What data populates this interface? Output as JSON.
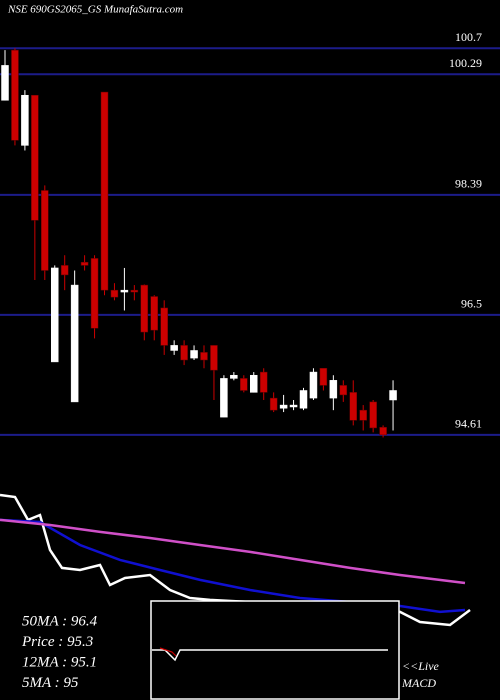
{
  "chart_data": [
    {
      "type": "candlestick",
      "title": "NSE 690GS2065_GS MunafaSutra.com",
      "up_color": "#ffffff",
      "down_color": "#cc0000",
      "grid_color": "#1c1c8a",
      "ylim": [
        94.53,
        101.46
      ],
      "yticks": [
        100.7,
        100.29,
        98.39,
        96.5,
        94.61
      ],
      "open": [
        99.88,
        100.67,
        99.17,
        99.96,
        98.46,
        95.76,
        97.28,
        95.13,
        97.33,
        97.39,
        100.01,
        96.89,
        96.86,
        96.89,
        96.97,
        96.79,
        96.61,
        95.94,
        96.02,
        95.82,
        95.91,
        96.02,
        94.89,
        95.5,
        95.5,
        95.28,
        95.6,
        95.19,
        95.03,
        95.05,
        95.03,
        95.19,
        95.66,
        95.19,
        95.39,
        95.28,
        95.0,
        95.13,
        94.73,
        95.16
      ],
      "high": [
        100.67,
        100.7,
        100.04,
        99.96,
        98.54,
        97.28,
        97.44,
        97.2,
        97.44,
        97.44,
        100.01,
        97.0,
        97.24,
        96.97,
        96.98,
        96.81,
        96.73,
        96.1,
        96.1,
        96.02,
        96.02,
        96.02,
        95.55,
        95.6,
        95.55,
        95.6,
        95.66,
        95.28,
        95.24,
        95.16,
        95.35,
        95.66,
        95.66,
        95.55,
        95.47,
        95.47,
        95.08,
        95.16,
        94.76,
        95.47
      ],
      "low": [
        99.88,
        99.17,
        99.09,
        97.05,
        97.05,
        95.76,
        96.89,
        95.13,
        97.2,
        96.13,
        96.81,
        96.73,
        96.57,
        96.73,
        96.1,
        96.1,
        95.87,
        95.87,
        95.71,
        95.79,
        95.66,
        95.16,
        94.89,
        95.47,
        95.28,
        95.28,
        95.16,
        94.97,
        94.97,
        95.0,
        95.0,
        95.16,
        95.31,
        95.0,
        95.13,
        94.76,
        94.68,
        94.65,
        94.57,
        94.68
      ],
      "close": [
        100.43,
        99.25,
        99.96,
        97.99,
        97.2,
        97.24,
        97.13,
        96.97,
        97.28,
        96.29,
        96.89,
        96.78,
        96.89,
        96.86,
        96.23,
        96.26,
        96.02,
        96.02,
        95.79,
        95.94,
        95.79,
        95.63,
        95.5,
        95.55,
        95.31,
        95.55,
        95.28,
        95.0,
        95.08,
        95.08,
        95.31,
        95.6,
        95.39,
        95.47,
        95.24,
        94.84,
        94.84,
        94.72,
        94.61,
        95.31
      ]
    },
    {
      "type": "line",
      "xlim": [
        0,
        500
      ],
      "ylim": [
        0,
        100
      ],
      "series": [
        {
          "color": "#ffffff",
          "x": [
            0,
            15,
            28,
            40,
            50,
            62,
            80,
            100,
            110,
            125,
            150,
            170,
            190,
            210,
            250,
            300,
            350,
            400,
            420,
            450,
            470
          ],
          "values": [
            96.9,
            95.6,
            81.3,
            84.4,
            62.5,
            51.3,
            50,
            53.1,
            40.6,
            45,
            46.9,
            37.5,
            32.5,
            31.3,
            30,
            28.1,
            25,
            23.8,
            17.5,
            15.6,
            25
          ]
        },
        {
          "color": "#1010d0",
          "x": [
            0,
            40,
            80,
            120,
            160,
            200,
            250,
            300,
            350,
            400,
            440,
            465
          ],
          "values": [
            81.3,
            80,
            65.6,
            56.3,
            50,
            43.8,
            37.5,
            32.5,
            30,
            27.5,
            23.8,
            25
          ]
        },
        {
          "color": "#d050c8",
          "x": [
            0,
            50,
            100,
            150,
            200,
            250,
            300,
            350,
            400,
            465
          ],
          "values": [
            81.3,
            78.1,
            73.8,
            70,
            65.6,
            61.3,
            56.3,
            51.3,
            46.9,
            41.9
          ]
        }
      ],
      "annotations": [
        "50MA : 96.4",
        "Price  : 95.3",
        "12MA : 95.1",
        "5MA : 95"
      ],
      "macd_label": [
        "<<Live",
        "MACD"
      ]
    }
  ]
}
